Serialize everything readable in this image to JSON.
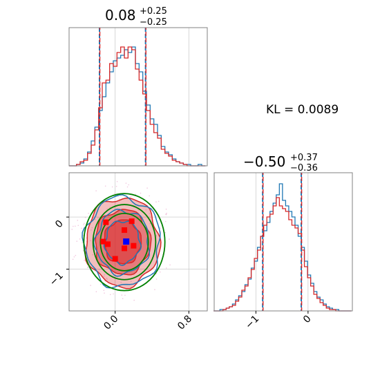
{
  "chart_data": {
    "type": "corner",
    "kl_label": "KL = 0.0089",
    "colors": {
      "series_a": "#1f77b4",
      "series_b": "#d62728",
      "ellipse": "#008000",
      "grid": "#cccccc",
      "frame": "#808080",
      "truth_marker": "#0000ff",
      "sample_marker": "#ff0000"
    },
    "parameters": [
      {
        "id": "p1",
        "title_value": "0.08",
        "title_upper": "+0.25",
        "title_lower": "−0.25",
        "median": 0.08,
        "err_plus": 0.25,
        "err_minus": 0.25,
        "range": [
          -0.5,
          1.0
        ],
        "ticks": [
          0.0,
          0.8
        ],
        "tick_labels": [
          "0.0",
          "0.8"
        ],
        "quantiles_a": [
          -0.17,
          0.33
        ],
        "quantiles_b": [
          -0.17,
          0.33
        ]
      },
      {
        "id": "p2",
        "title_value": "−0.50",
        "title_upper": "+0.37",
        "title_lower": "−0.36",
        "median": -0.5,
        "err_plus": 0.37,
        "err_minus": 0.36,
        "range": [
          -1.8,
          0.85
        ],
        "ticks": [
          -1.0,
          0.0
        ],
        "tick_labels": [
          "−1",
          "0"
        ],
        "quantiles_a": [
          -0.87,
          -0.13
        ],
        "quantiles_b": [
          -0.87,
          -0.13
        ]
      }
    ],
    "hist_1d": {
      "p1": {
        "centers": [
          -0.48,
          -0.44,
          -0.4,
          -0.36,
          -0.32,
          -0.28,
          -0.24,
          -0.2,
          -0.16,
          -0.12,
          -0.08,
          -0.04,
          0.0,
          0.04,
          0.08,
          0.12,
          0.16,
          0.2,
          0.24,
          0.28,
          0.32,
          0.36,
          0.4,
          0.44,
          0.48,
          0.52,
          0.56,
          0.6,
          0.64,
          0.68,
          0.72,
          0.76,
          0.8,
          0.84,
          0.88,
          0.92,
          0.96
        ],
        "series_a": [
          0.0,
          0.0,
          0.01,
          0.02,
          0.05,
          0.1,
          0.18,
          0.28,
          0.4,
          0.5,
          0.6,
          0.68,
          0.76,
          0.78,
          0.8,
          0.84,
          0.82,
          0.86,
          0.74,
          0.68,
          0.54,
          0.44,
          0.34,
          0.3,
          0.22,
          0.14,
          0.1,
          0.08,
          0.05,
          0.03,
          0.02,
          0.01,
          0.01,
          0.0,
          0.0,
          0.01,
          0.0
        ],
        "series_b": [
          0.0,
          0.0,
          0.01,
          0.03,
          0.04,
          0.09,
          0.15,
          0.26,
          0.42,
          0.6,
          0.62,
          0.74,
          0.72,
          0.82,
          0.86,
          0.78,
          0.86,
          0.84,
          0.7,
          0.62,
          0.52,
          0.4,
          0.3,
          0.24,
          0.2,
          0.12,
          0.09,
          0.07,
          0.04,
          0.03,
          0.02,
          0.01,
          0.0,
          0.0,
          0.0,
          0.0,
          0.0
        ]
      },
      "p2": {
        "centers": [
          -1.78,
          -1.72,
          -1.66,
          -1.6,
          -1.54,
          -1.48,
          -1.42,
          -1.36,
          -1.3,
          -1.24,
          -1.18,
          -1.12,
          -1.06,
          -1.0,
          -0.94,
          -0.88,
          -0.82,
          -0.76,
          -0.7,
          -0.64,
          -0.58,
          -0.52,
          -0.46,
          -0.4,
          -0.34,
          -0.28,
          -0.22,
          -0.16,
          -0.1,
          -0.04,
          0.02,
          0.08,
          0.14,
          0.2,
          0.26,
          0.32,
          0.38,
          0.44,
          0.5,
          0.56,
          0.62,
          0.68,
          0.74,
          0.8
        ],
        "series_a": [
          0.0,
          0.0,
          0.01,
          0.01,
          0.02,
          0.03,
          0.05,
          0.08,
          0.11,
          0.14,
          0.19,
          0.23,
          0.31,
          0.36,
          0.46,
          0.54,
          0.58,
          0.64,
          0.72,
          0.78,
          0.84,
          0.92,
          0.8,
          0.76,
          0.72,
          0.68,
          0.62,
          0.54,
          0.46,
          0.36,
          0.26,
          0.2,
          0.14,
          0.1,
          0.08,
          0.05,
          0.03,
          0.02,
          0.01,
          0.01,
          0.0,
          0.0,
          0.0,
          0.0
        ],
        "series_b": [
          0.0,
          0.0,
          0.0,
          0.01,
          0.02,
          0.03,
          0.04,
          0.07,
          0.1,
          0.15,
          0.18,
          0.24,
          0.3,
          0.38,
          0.44,
          0.54,
          0.62,
          0.68,
          0.7,
          0.76,
          0.82,
          0.76,
          0.74,
          0.72,
          0.66,
          0.62,
          0.6,
          0.56,
          0.44,
          0.32,
          0.24,
          0.18,
          0.12,
          0.09,
          0.06,
          0.04,
          0.02,
          0.01,
          0.01,
          0.0,
          0.0,
          0.0,
          0.0,
          0.0
        ]
      }
    },
    "joint": {
      "x_param": "p1",
      "y_param": "p2",
      "ylim": [
        -1.8,
        0.85
      ],
      "xlim": [
        -0.5,
        1.0
      ],
      "truth": {
        "x": 0.12,
        "y": -0.47
      },
      "sample_points": [
        {
          "x": -0.1,
          "y": -0.1
        },
        {
          "x": 0.18,
          "y": -0.08
        },
        {
          "x": 0.1,
          "y": -0.25
        },
        {
          "x": -0.13,
          "y": -0.47
        },
        {
          "x": -0.08,
          "y": -0.52
        },
        {
          "x": 0.2,
          "y": -0.55
        },
        {
          "x": 0.0,
          "y": -0.8
        },
        {
          "x": 0.1,
          "y": -0.6
        }
      ],
      "levels": [
        {
          "series": "b",
          "rx": 0.4,
          "ry": 0.85,
          "fill": true,
          "fill_opacity": 0.55
        },
        {
          "series": "b",
          "rx": 0.3,
          "ry": 0.62,
          "fill": true,
          "fill_opacity": 0.8
        },
        {
          "series": "b",
          "rx": 0.2,
          "ry": 0.42,
          "fill": true,
          "fill_opacity": 0.95
        },
        {
          "series": "a",
          "rx": 0.41,
          "ry": 0.86,
          "fill": false
        },
        {
          "series": "a",
          "rx": 0.29,
          "ry": 0.61,
          "fill": false
        },
        {
          "series": "a",
          "rx": 0.19,
          "ry": 0.41,
          "fill": false
        }
      ],
      "ellipses": [
        {
          "cx": 0.1,
          "cy": -0.48,
          "rx": 0.44,
          "ry": 0.93
        },
        {
          "cx": 0.1,
          "cy": -0.48,
          "rx": 0.34,
          "ry": 0.72
        },
        {
          "cx": 0.1,
          "cy": -0.48,
          "rx": 0.26,
          "ry": 0.55
        }
      ]
    }
  }
}
